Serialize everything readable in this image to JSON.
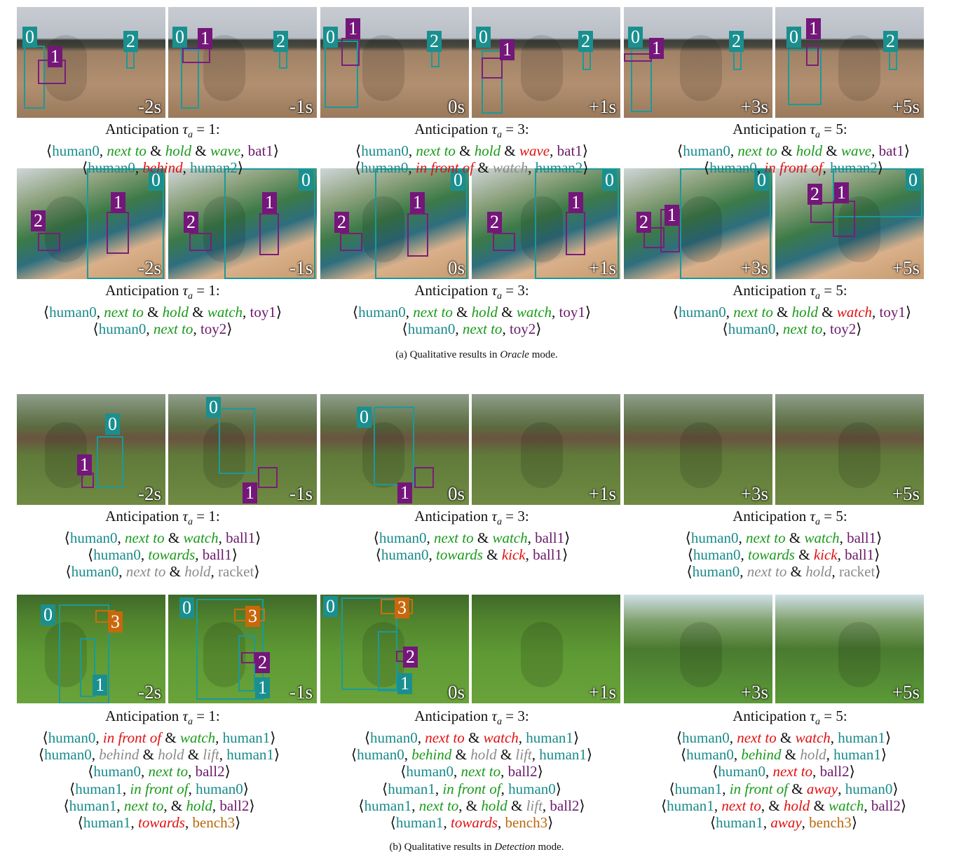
{
  "times": [
    "-2s",
    "-1s",
    "0s",
    "+1s",
    "+3s",
    "+5s"
  ],
  "anticipation": {
    "prefix": "Anticipation",
    "tau": "τ",
    "sub": "a",
    "v1": "= 1:",
    "v3": "= 3:",
    "v5": "= 5:"
  },
  "captions": {
    "a_pre": "(a) Qualitative results in ",
    "a_mode": "Oracle",
    "a_post": " mode.",
    "b_pre": "(b) Qualitative results in ",
    "b_mode": "Detection",
    "b_post": " mode."
  },
  "ids": {
    "0": "0",
    "1": "1",
    "2": "2",
    "3": "3"
  },
  "words": {
    "human0": "human0",
    "human1": "human1",
    "human2": "human2",
    "bat1": "bat1",
    "toy1": "toy1",
    "toy2": "toy2",
    "ball1": "ball1",
    "ball2": "ball2",
    "racket": "racket",
    "bench3": "bench3",
    "next_to": "next to",
    "hold": "hold",
    "wave": "wave",
    "behind": "behind",
    "in_front_of": "in front of",
    "watch": "watch",
    "towards": "towards",
    "kick": "kick",
    "lift": "lift",
    "away": "away",
    "amp": "&",
    "lang": "⟨",
    "rang": "⟩",
    "comma": ","
  },
  "colors": {
    "human": "#1a8a8a",
    "object": "#6a1a6a",
    "bench": "#b8680c",
    "correct": "#1a9a1a",
    "wrong": "#e01010",
    "uncertain": "#8a8a8a"
  }
}
